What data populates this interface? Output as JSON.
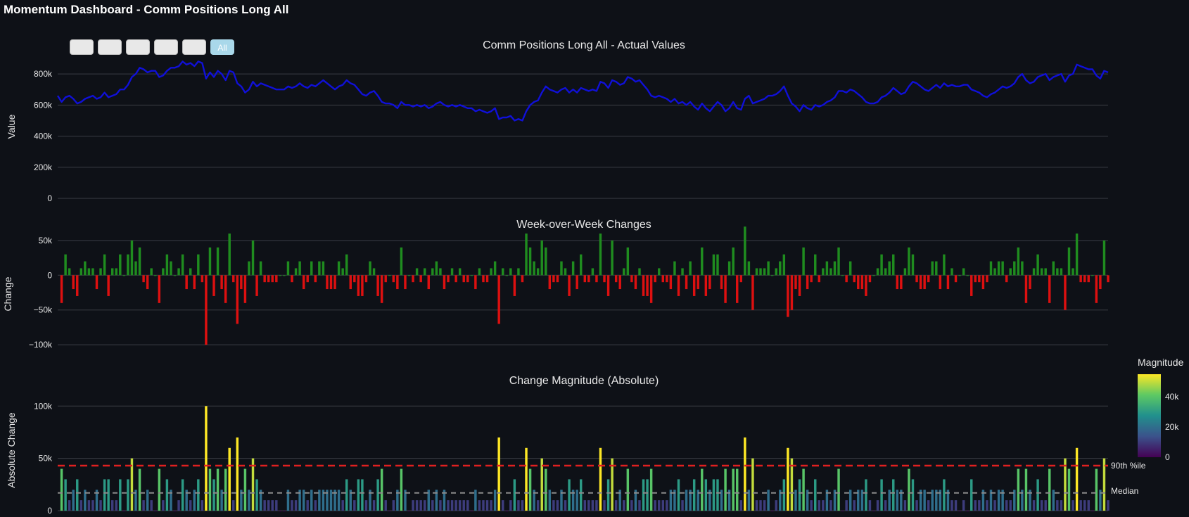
{
  "page": {
    "title": "Momentum Dashboard - Comm Positions Long All"
  },
  "range_selector": {
    "buttons": [
      "",
      "",
      "",
      "",
      "",
      "All"
    ],
    "active_label": "All"
  },
  "colors": {
    "background": "#0e1117",
    "line": "#1010d8",
    "positive": "#1f8c1f",
    "negative": "#dd1010",
    "threshold_90": "#e02020",
    "median": "#8a8a8a",
    "grid": "#3a3d45"
  },
  "chart_data": [
    {
      "type": "line",
      "title": "Comm Positions Long All - Actual Values",
      "ylabel": "Value",
      "ylim": [
        0,
        900000
      ],
      "yticks": [
        0,
        200000,
        400000,
        600000,
        800000
      ],
      "ytick_labels": [
        "0",
        "200k",
        "400k",
        "600k",
        "800k"
      ],
      "grid": true,
      "series": [
        {
          "values": [
            660000,
            620000,
            650000,
            660000,
            640000,
            610000,
            620000,
            640000,
            650000,
            660000,
            640000,
            650000,
            680000,
            650000,
            660000,
            670000,
            700000,
            700000,
            730000,
            780000,
            800000,
            840000,
            830000,
            810000,
            820000,
            820000,
            780000,
            790000,
            820000,
            840000,
            840000,
            850000,
            880000,
            860000,
            870000,
            850000,
            880000,
            870000,
            770000,
            810000,
            780000,
            820000,
            800000,
            760000,
            820000,
            810000,
            740000,
            720000,
            680000,
            700000,
            750000,
            720000,
            740000,
            730000,
            720000,
            710000,
            700000,
            700000,
            700000,
            720000,
            710000,
            720000,
            740000,
            720000,
            710000,
            730000,
            720000,
            740000,
            760000,
            740000,
            720000,
            700000,
            720000,
            730000,
            760000,
            740000,
            730000,
            700000,
            670000,
            660000,
            680000,
            690000,
            660000,
            620000,
            610000,
            610000,
            600000,
            580000,
            620000,
            600000,
            600000,
            590000,
            600000,
            590000,
            600000,
            580000,
            590000,
            610000,
            620000,
            600000,
            590000,
            600000,
            590000,
            600000,
            590000,
            580000,
            580000,
            560000,
            570000,
            560000,
            550000,
            560000,
            580000,
            510000,
            520000,
            520000,
            530000,
            500000,
            510000,
            500000,
            560000,
            600000,
            620000,
            630000,
            680000,
            720000,
            700000,
            690000,
            680000,
            700000,
            710000,
            680000,
            700000,
            680000,
            710000,
            700000,
            690000,
            700000,
            690000,
            750000,
            740000,
            710000,
            760000,
            750000,
            730000,
            740000,
            780000,
            770000,
            750000,
            760000,
            730000,
            700000,
            660000,
            650000,
            660000,
            650000,
            640000,
            620000,
            640000,
            610000,
            620000,
            600000,
            620000,
            590000,
            570000,
            610000,
            580000,
            560000,
            590000,
            620000,
            600000,
            560000,
            580000,
            620000,
            580000,
            570000,
            640000,
            660000,
            610000,
            620000,
            630000,
            640000,
            660000,
            660000,
            670000,
            690000,
            720000,
            660000,
            610000,
            590000,
            560000,
            600000,
            580000,
            570000,
            600000,
            590000,
            600000,
            620000,
            630000,
            650000,
            690000,
            690000,
            680000,
            700000,
            690000,
            670000,
            650000,
            620000,
            610000,
            610000,
            620000,
            650000,
            660000,
            680000,
            710000,
            690000,
            670000,
            680000,
            720000,
            750000,
            740000,
            720000,
            700000,
            690000,
            710000,
            730000,
            710000,
            740000,
            720000,
            730000,
            720000,
            720000,
            730000,
            730000,
            700000,
            690000,
            680000,
            660000,
            650000,
            670000,
            680000,
            700000,
            720000,
            710000,
            720000,
            740000,
            780000,
            800000,
            760000,
            740000,
            750000,
            780000,
            790000,
            800000,
            760000,
            780000,
            790000,
            800000,
            750000,
            790000,
            800000,
            860000,
            850000,
            840000,
            830000,
            830000,
            790000,
            770000,
            820000,
            810000
          ]
        }
      ]
    },
    {
      "type": "bar",
      "title": "Week-over-Week Changes",
      "ylabel": "Change",
      "ylim": [
        -110000,
        60000
      ],
      "yticks": [
        -100000,
        -50000,
        0,
        50000
      ],
      "ytick_labels": [
        "−100k",
        "−50k",
        "0",
        "50k"
      ],
      "grid": true
    },
    {
      "type": "bar",
      "title": "Change Magnitude (Absolute)",
      "ylabel": "Absolute Change",
      "ylim": [
        0,
        115000
      ],
      "yticks": [
        0,
        50000,
        100000
      ],
      "ytick_labels": [
        "0",
        "50k",
        "100k"
      ],
      "grid": true,
      "reference_lines": [
        {
          "label": "90th %ile",
          "value": 43000
        },
        {
          "label": "Median",
          "value": 17000
        }
      ],
      "colorbar": {
        "title": "Magnitude",
        "range": [
          0,
          55000
        ],
        "ticks": [
          0,
          20000,
          40000
        ],
        "tick_labels": [
          "0",
          "20k",
          "40k"
        ],
        "colorscale": [
          "#440154",
          "#3b528b",
          "#21908d",
          "#5dc963",
          "#fde725"
        ]
      }
    }
  ]
}
